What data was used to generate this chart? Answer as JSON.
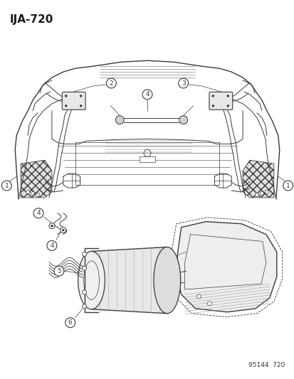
{
  "title": "IJA-720",
  "watermark": "95144  720",
  "bg_color": "#ffffff",
  "line_color": "#3a3a3a",
  "fig_width": 4.14,
  "fig_height": 5.33,
  "dpi": 100
}
